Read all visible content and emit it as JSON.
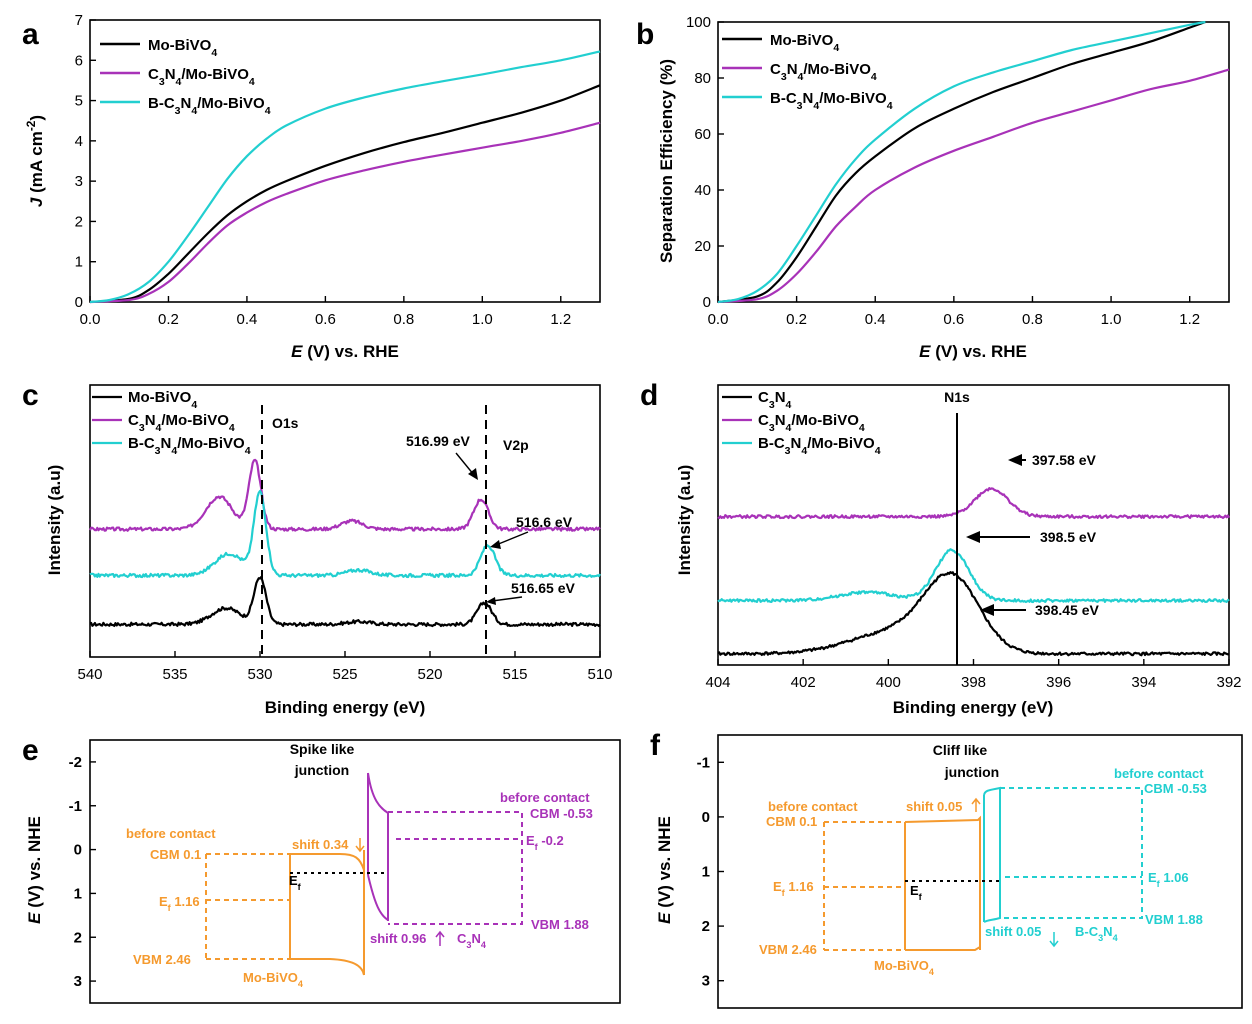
{
  "colors": {
    "black": "#000000",
    "purple": "#a832b8",
    "cyan": "#22cfd0",
    "orange": "#f59a2e"
  },
  "legend": {
    "mo": [
      "Mo-BiVO",
      "4"
    ],
    "c3n4mo": [
      "C",
      "3",
      "N",
      "4",
      "/Mo-BiVO",
      "4"
    ],
    "bc3n4mo": [
      "B-C",
      "3",
      "N",
      "4",
      "/Mo-BiVO",
      "4"
    ],
    "c3n4": [
      "C",
      "3",
      "N",
      "4"
    ]
  },
  "chart_data": [
    {
      "panel": "a",
      "type": "line",
      "xlabel": {
        "italic": "E",
        "rest": " (V) vs. RHE"
      },
      "ylabel": {
        "italic": "J",
        "rest": " (mA cm",
        "sup": "-2",
        ")": ")"
      },
      "xlim": [
        0,
        1.3
      ],
      "ylim": [
        0,
        7
      ],
      "xticks": [
        "0.0",
        "0.2",
        "0.4",
        "0.6",
        "0.8",
        "1.0",
        "1.2"
      ],
      "yticks": [
        "0",
        "1",
        "2",
        "3",
        "4",
        "5",
        "6",
        "7"
      ],
      "series": [
        {
          "name": "Mo-BiVO4",
          "color": "black",
          "x": [
            0,
            0.1,
            0.15,
            0.2,
            0.25,
            0.3,
            0.35,
            0.4,
            0.45,
            0.5,
            0.6,
            0.7,
            0.8,
            0.9,
            1.0,
            1.1,
            1.2,
            1.3
          ],
          "y": [
            0,
            0.08,
            0.3,
            0.7,
            1.2,
            1.7,
            2.15,
            2.5,
            2.78,
            3.0,
            3.38,
            3.7,
            3.97,
            4.2,
            4.45,
            4.7,
            5.0,
            5.38
          ]
        },
        {
          "name": "C3N4/Mo-BiVO4",
          "color": "purple",
          "x": [
            0,
            0.1,
            0.15,
            0.2,
            0.25,
            0.3,
            0.35,
            0.4,
            0.45,
            0.5,
            0.6,
            0.7,
            0.8,
            0.9,
            1.0,
            1.1,
            1.2,
            1.3
          ],
          "y": [
            0,
            0.05,
            0.2,
            0.5,
            0.95,
            1.45,
            1.9,
            2.22,
            2.48,
            2.68,
            3.02,
            3.27,
            3.48,
            3.66,
            3.83,
            4.0,
            4.2,
            4.45
          ]
        },
        {
          "name": "B-C3N4/Mo-BiVO4",
          "color": "cyan",
          "x": [
            0,
            0.05,
            0.1,
            0.15,
            0.2,
            0.25,
            0.3,
            0.35,
            0.4,
            0.45,
            0.5,
            0.6,
            0.7,
            0.8,
            0.9,
            1.0,
            1.1,
            1.2,
            1.3
          ],
          "y": [
            0,
            0.05,
            0.2,
            0.5,
            1.0,
            1.65,
            2.35,
            3.05,
            3.62,
            4.05,
            4.38,
            4.8,
            5.08,
            5.3,
            5.48,
            5.65,
            5.83,
            6.0,
            6.22
          ]
        }
      ]
    },
    {
      "panel": "b",
      "type": "line",
      "xlabel": {
        "italic": "E",
        "rest": " (V) vs. RHE"
      },
      "ylabel": "Separation Efficiency (%)",
      "xlim": [
        0,
        1.3
      ],
      "ylim": [
        0,
        100
      ],
      "xticks": [
        "0.0",
        "0.2",
        "0.4",
        "0.6",
        "0.8",
        "1.0",
        "1.2"
      ],
      "yticks": [
        "0",
        "20",
        "40",
        "60",
        "80",
        "100"
      ],
      "series": [
        {
          "name": "Mo-BiVO4",
          "color": "black",
          "x": [
            0,
            0.1,
            0.15,
            0.2,
            0.25,
            0.3,
            0.35,
            0.4,
            0.5,
            0.6,
            0.7,
            0.8,
            0.9,
            1.0,
            1.1,
            1.2,
            1.24
          ],
          "y": [
            0,
            2,
            7,
            16,
            27,
            38,
            46,
            52,
            62,
            69,
            75,
            80,
            85,
            89,
            93,
            98,
            100
          ]
        },
        {
          "name": "C3N4/Mo-BiVO4",
          "color": "purple",
          "x": [
            0,
            0.1,
            0.15,
            0.2,
            0.25,
            0.3,
            0.35,
            0.4,
            0.5,
            0.6,
            0.7,
            0.8,
            0.9,
            1.0,
            1.1,
            1.2,
            1.3
          ],
          "y": [
            0,
            1,
            4,
            10,
            18,
            27,
            34,
            40,
            48,
            54,
            59,
            64,
            68,
            72,
            76,
            79,
            83
          ]
        },
        {
          "name": "B-C3N4/Mo-BiVO4",
          "color": "cyan",
          "x": [
            0,
            0.05,
            0.1,
            0.15,
            0.2,
            0.25,
            0.3,
            0.35,
            0.4,
            0.5,
            0.6,
            0.7,
            0.8,
            0.9,
            1.0,
            1.1,
            1.2,
            1.24
          ],
          "y": [
            0,
            1,
            4,
            10,
            20,
            31,
            42,
            51,
            58,
            69,
            77,
            82,
            86,
            90,
            93,
            96,
            99,
            100
          ]
        }
      ]
    },
    {
      "panel": "c",
      "type": "line",
      "xlabel": "Binding energy (eV)",
      "ylabel": "Intensity (a.u)",
      "xlim": [
        540,
        510
      ],
      "ylim": [
        0,
        1
      ],
      "xticks": [
        "540",
        "535",
        "530",
        "525",
        "520",
        "515",
        "510"
      ],
      "series": [
        {
          "name": "Mo-BiVO4",
          "color": "black",
          "peaks": [
            [
              532,
              0.06,
              1.2
            ],
            [
              530,
              0.17,
              0.5
            ],
            [
              524.2,
              0.01,
              1
            ],
            [
              516.8,
              0.08,
              0.6
            ]
          ],
          "offset": 0.12
        },
        {
          "name": "C3N4/Mo-BiVO4",
          "color": "purple",
          "peaks": [
            [
              532.4,
              0.12,
              1.1
            ],
            [
              530.3,
              0.25,
              0.5
            ],
            [
              524.6,
              0.03,
              0.9
            ],
            [
              517,
              0.11,
              0.6
            ]
          ],
          "offset": 0.47
        },
        {
          "name": "B-C3N4/Mo-BiVO4",
          "color": "cyan",
          "peaks": [
            [
              531.8,
              0.08,
              1.2
            ],
            [
              530,
              0.3,
              0.5
            ],
            [
              524.2,
              0.02,
              1
            ],
            [
              516.6,
              0.11,
              0.6
            ]
          ],
          "offset": 0.3
        }
      ],
      "annotations": [
        "O1s",
        "V2p",
        "516.99 eV",
        "516.6 eV",
        "516.65 eV"
      ]
    },
    {
      "panel": "d",
      "type": "line",
      "xlabel": "Binding energy (eV)",
      "ylabel": "Intensity (a.u)",
      "xlim": [
        404,
        392
      ],
      "ylim": [
        0,
        1
      ],
      "xticks": [
        "404",
        "402",
        "400",
        "398",
        "396",
        "394",
        "392"
      ],
      "series": [
        {
          "name": "C3N4",
          "color": "black",
          "peaks": [
            [
              398.5,
              0.25,
              0.9
            ],
            [
              399.8,
              0.08,
              1.5
            ]
          ],
          "offset": 0.04
        },
        {
          "name": "C3N4/Mo-BiVO4",
          "color": "purple",
          "peaks": [
            [
              397.58,
              0.1,
              0.55
            ]
          ],
          "offset": 0.53
        },
        {
          "name": "B-C3N4/Mo-BiVO4",
          "color": "cyan",
          "peaks": [
            [
              398.5,
              0.18,
              0.55
            ],
            [
              400.5,
              0.03,
              0.9
            ]
          ],
          "offset": 0.23
        }
      ],
      "annotations": [
        "N1s",
        "397.58 eV",
        "398.5 eV",
        "398.45 eV"
      ]
    },
    {
      "panel": "e",
      "type": "diagram",
      "ylabel": {
        "italic": "E",
        "rest": " (V) vs. NHE"
      },
      "ylim": [
        -2.5,
        3.5
      ],
      "yticks": [
        "-2",
        "-1",
        "0",
        "1",
        "2",
        "3"
      ],
      "title": [
        "Spike like",
        "junction"
      ],
      "labels": {
        "before_left": "before contact",
        "cbm_left": "CBM 0.1",
        "ef_left": [
          "E",
          "f",
          " 1.16"
        ],
        "vbm_left": "VBM 2.46",
        "mobivo4": [
          "Mo-BiVO",
          "4"
        ],
        "shift_top": "shift 0.34",
        "ef_mid": [
          "E",
          "f"
        ],
        "before_right": "before contact",
        "cbm_right": "CBM -0.53",
        "ef_right": [
          "E",
          "f",
          " -0.2"
        ],
        "vbm_right": "VBM 1.88",
        "shift_bottom": "shift 0.96",
        "c3n4": [
          "C",
          "3",
          "N",
          "4"
        ]
      }
    },
    {
      "panel": "f",
      "type": "diagram",
      "ylabel": {
        "italic": "E",
        "rest": " (V) vs. NHE"
      },
      "ylim": [
        -1.5,
        3.5
      ],
      "yticks": [
        "-1",
        "0",
        "1",
        "2",
        "3"
      ],
      "title": [
        "Cliff like",
        "junction"
      ],
      "labels": {
        "before_left": "before contact",
        "cbm_left": "CBM 0.1",
        "ef_left": [
          "E",
          "f",
          " 1.16"
        ],
        "vbm_left": "VBM 2.46",
        "mobivo4": [
          "Mo-BiVO",
          "4"
        ],
        "shift_top": "shift 0.05",
        "ef_mid": [
          "E",
          "f"
        ],
        "before_right": "before contact",
        "cbm_right": "CBM -0.53",
        "ef_right": [
          "E",
          "f",
          " 1.06"
        ],
        "vbm_right": "VBM 1.88",
        "shift_bottom": "shift 0.05",
        "bc3n4": [
          "B-C",
          "3",
          "N",
          "4"
        ]
      }
    }
  ]
}
